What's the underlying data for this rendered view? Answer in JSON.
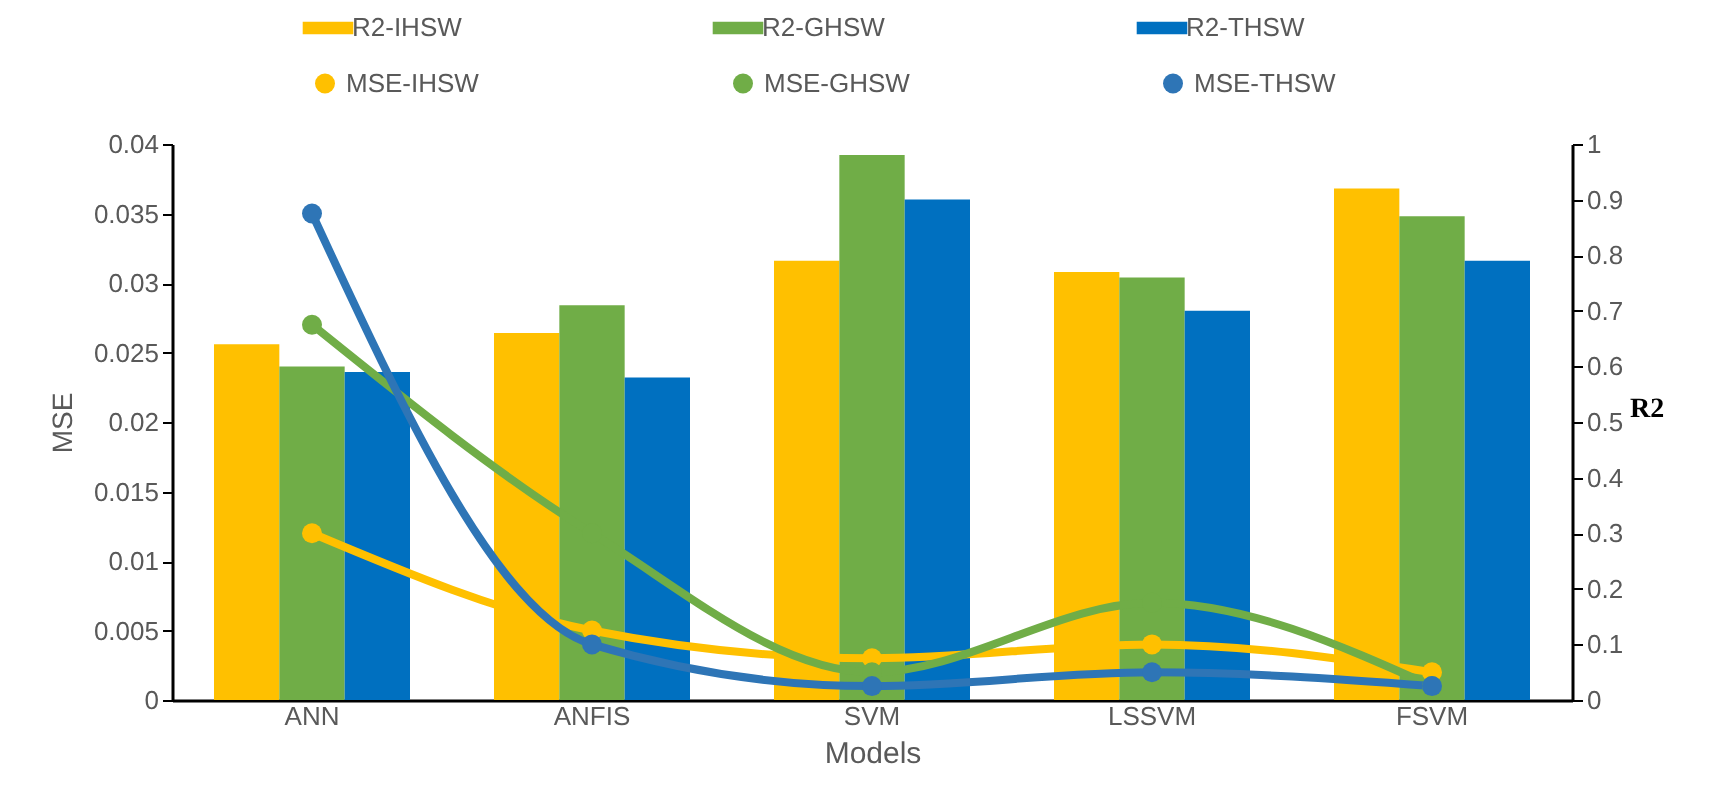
{
  "chart_data": {
    "type": "bar",
    "categories": [
      "ANN",
      "ANFIS",
      "SVM",
      "LSSVM",
      "FSVM"
    ],
    "xlabel": "Models",
    "ylabel": "MSE",
    "y2label": "R2",
    "ylim": [
      0,
      0.04
    ],
    "yticks": [
      0,
      0.005,
      0.01,
      0.015,
      0.02,
      0.025,
      0.03,
      0.035,
      0.04
    ],
    "y2lim": [
      0,
      1
    ],
    "y2ticks": [
      0,
      0.1,
      0.2,
      0.3,
      0.4,
      0.5,
      0.6,
      0.7,
      0.8,
      0.9,
      1
    ],
    "grid": false,
    "legend": "top",
    "marker": "circle",
    "line_style": "solid",
    "series": [
      {
        "name": "R2-IHSW",
        "axis": "y2",
        "color": "#ffc000",
        "values": [
          0.64,
          0.66,
          0.79,
          0.77,
          0.92
        ]
      },
      {
        "name": "R2-GHSW",
        "axis": "y2",
        "color": "#70ad47",
        "values": [
          0.6,
          0.71,
          0.98,
          0.76,
          0.87
        ]
      },
      {
        "name": "R2-THSW",
        "axis": "y2",
        "color": "#0070c0",
        "values": [
          0.59,
          0.58,
          0.9,
          0.7,
          0.79
        ]
      },
      {
        "name": "MSE-IHSW",
        "type": "line",
        "axis": "y",
        "color": "#ffc000",
        "values": [
          0.012,
          0.005,
          0.003,
          0.004,
          0.002
        ]
      },
      {
        "name": "MSE-GHSW",
        "type": "line",
        "axis": "y",
        "color": "#70ad47",
        "values": [
          0.027,
          0.012,
          0.002,
          0.007,
          0.001
        ]
      },
      {
        "name": "MSE-THSW",
        "type": "line",
        "axis": "y",
        "color": "#2e75b6",
        "values": [
          0.035,
          0.004,
          0.001,
          0.002,
          0.001
        ]
      }
    ]
  }
}
